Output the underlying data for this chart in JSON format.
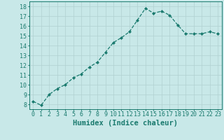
{
  "x": [
    0,
    1,
    2,
    3,
    4,
    5,
    6,
    7,
    8,
    9,
    10,
    11,
    12,
    13,
    14,
    15,
    16,
    17,
    18,
    19,
    20,
    21,
    22,
    23
  ],
  "y": [
    8.3,
    7.9,
    9.0,
    9.6,
    10.0,
    10.7,
    11.1,
    11.8,
    12.3,
    13.3,
    14.3,
    14.8,
    15.4,
    16.6,
    17.8,
    17.3,
    17.5,
    17.1,
    16.1,
    15.2,
    15.2,
    15.2,
    15.4,
    15.2
  ],
  "xlabel": "Humidex (Indice chaleur)",
  "ylim": [
    7.5,
    18.5
  ],
  "xlim": [
    -0.5,
    23.5
  ],
  "yticks": [
    8,
    9,
    10,
    11,
    12,
    13,
    14,
    15,
    16,
    17,
    18
  ],
  "xticks": [
    0,
    1,
    2,
    3,
    4,
    5,
    6,
    7,
    8,
    9,
    10,
    11,
    12,
    13,
    14,
    15,
    16,
    17,
    18,
    19,
    20,
    21,
    22,
    23
  ],
  "line_color": "#1a7a6e",
  "marker": "D",
  "marker_size": 2.0,
  "bg_color": "#c8e8e8",
  "grid_color": "#b0d0d0",
  "axis_color": "#1a7a6e",
  "xlabel_fontsize": 7.5,
  "tick_fontsize": 6.0
}
